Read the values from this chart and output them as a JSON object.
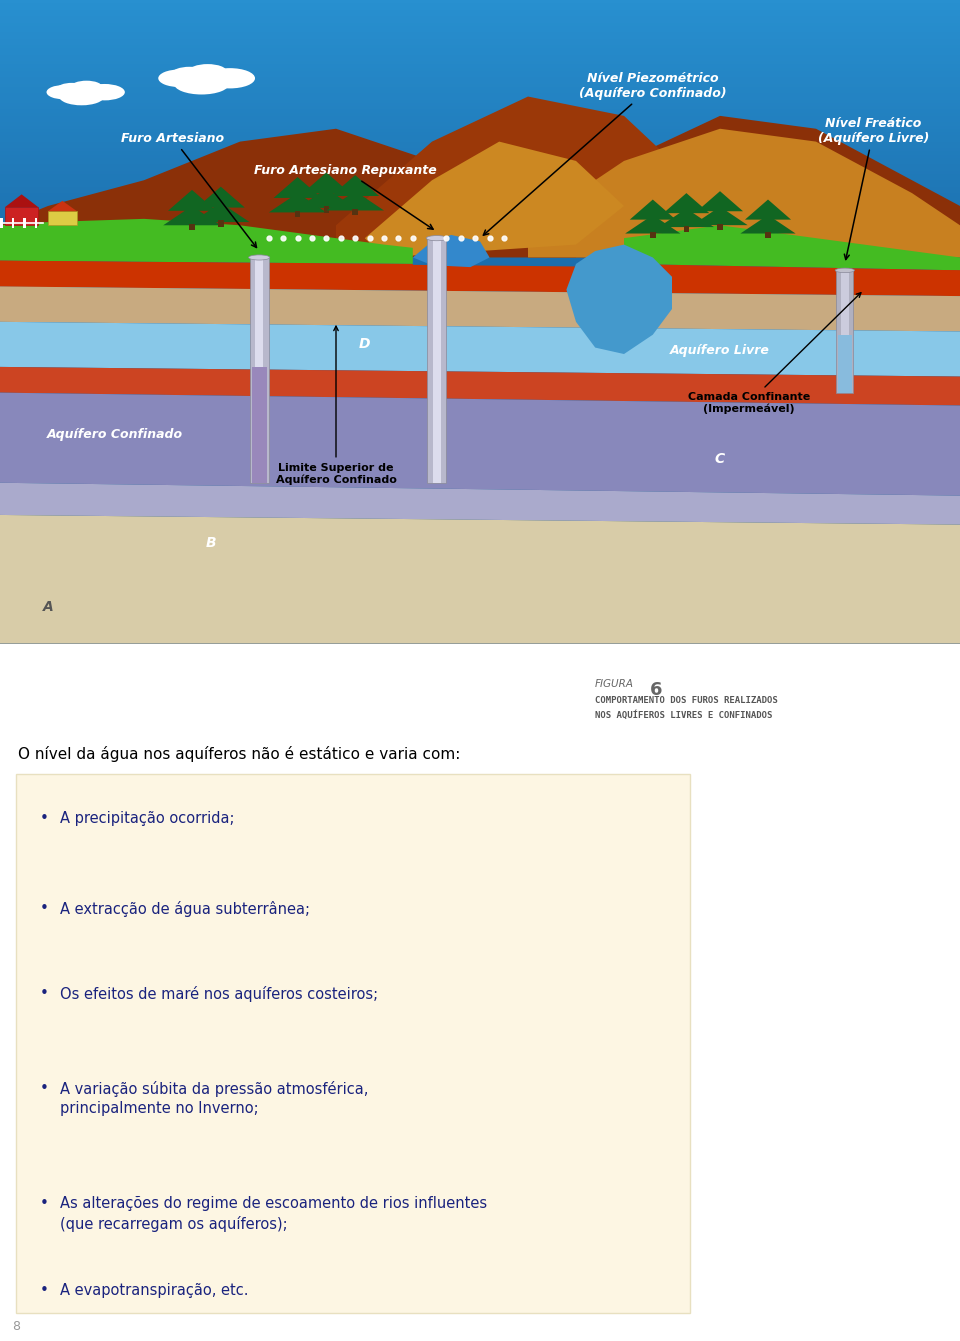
{
  "bg_color": "#ffffff",
  "fig_label_text": "FIGURA",
  "fig_label_num": "6",
  "fig_caption_line1": "COMPORTAMENTO DOS FUROS REALIZADOS",
  "fig_caption_line2": "NOS AQUÍFEROS LIVRES E CONFINADOS",
  "intro_text": "O nível da água nos aquíferos não é estático e varia com:",
  "bullet_color": "#1a237e",
  "bullets": [
    "A precipitação ocorrida;",
    "A extracção de água subterrânea;",
    "Os efeitos de maré nos aquíferos costeiros;",
    "A variação súbita da pressão atmosférica,\n   principalmente no Inverno;",
    "As alterações do regime de escoamento de rios influentes\n   (que recarregam os aquíferos);",
    "A evapotranspiração, etc."
  ],
  "box_color": "#fdf6e3",
  "box_edge": "#e8e0c0",
  "page_number": "8",
  "sky_top": "#0a3d7a",
  "sky_bottom": "#1a6ec0",
  "mountain_dark": "#8B3A0A",
  "mountain_tan": "#c87820",
  "green_surface": "#44bb22",
  "red_layer1": "#cc3300",
  "sand_layer": "#c8aa80",
  "blue_aquifer": "#88c8e8",
  "red_layer2": "#cc4422",
  "purple_deep": "#8888bb",
  "purple_lighter": "#aaaadd",
  "beige_bottom": "#d8cca8",
  "label_furo_artesiano": "Furo Artesiano",
  "label_furo_repuxante": "Furo Artesiano Repuxante",
  "label_nivel_piez": "Nível Piezométrico\n(Aquífero Confinado)",
  "label_nivel_freatico": "Nível Freático\n(Aquífero Livre)",
  "label_aquifero_confinado": "Aquífero Confinado",
  "label_aquifero_livre": "Aquífero Livre",
  "label_limite_superior": "Limite Superior de\nAquífero Confinado",
  "label_camada_confinante": "Camada Confinante\n(Impermeável)",
  "label_A": "A",
  "label_B": "B",
  "label_C": "C",
  "label_D": "D"
}
